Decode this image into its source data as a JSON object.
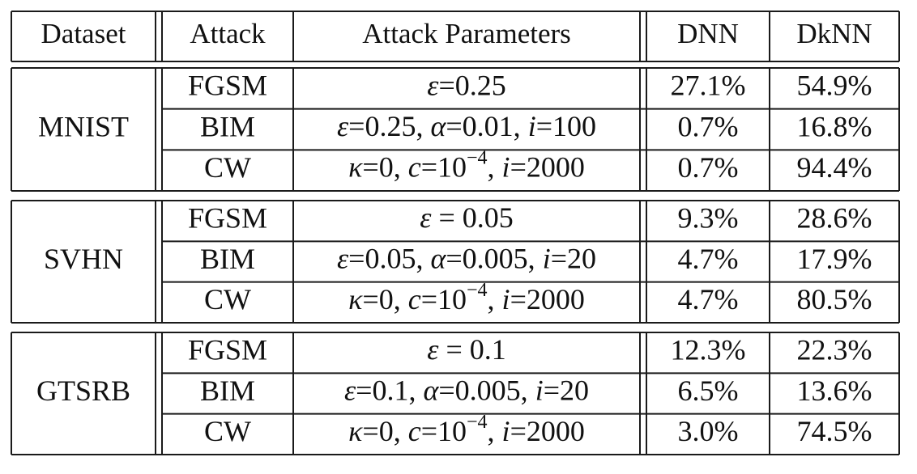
{
  "table": {
    "headers": [
      "Dataset",
      "Attack",
      "Attack Parameters",
      "DNN",
      "DkNN"
    ],
    "groups": [
      {
        "dataset": "MNIST",
        "rows": [
          {
            "attack": "FGSM",
            "params": [
              {
                "t": "ε",
                "i": true
              },
              {
                "t": "=0.25"
              }
            ],
            "dnn": "27.1%",
            "dknn": "54.9%"
          },
          {
            "attack": "BIM",
            "params": [
              {
                "t": "ε",
                "i": true
              },
              {
                "t": "=0.25, "
              },
              {
                "t": "α",
                "i": true
              },
              {
                "t": "=0.01, "
              },
              {
                "t": "i",
                "i": true
              },
              {
                "t": "=100"
              }
            ],
            "dnn": "0.7%",
            "dknn": "16.8%"
          },
          {
            "attack": "CW",
            "params": [
              {
                "t": "κ",
                "i": true
              },
              {
                "t": "=0, "
              },
              {
                "t": "c",
                "i": true
              },
              {
                "t": "=10"
              },
              {
                "t": "−4",
                "sup": true
              },
              {
                "t": ", "
              },
              {
                "t": "i",
                "i": true
              },
              {
                "t": "=2000"
              }
            ],
            "dnn": "0.7%",
            "dknn": "94.4%"
          }
        ]
      },
      {
        "dataset": "SVHN",
        "rows": [
          {
            "attack": "FGSM",
            "params": [
              {
                "t": "ε",
                "i": true
              },
              {
                "t": " = 0.05"
              }
            ],
            "dnn": "9.3%",
            "dknn": "28.6%"
          },
          {
            "attack": "BIM",
            "params": [
              {
                "t": "ε",
                "i": true
              },
              {
                "t": "=0.05, "
              },
              {
                "t": "α",
                "i": true
              },
              {
                "t": "=0.005, "
              },
              {
                "t": "i",
                "i": true
              },
              {
                "t": "=20"
              }
            ],
            "dnn": "4.7%",
            "dknn": "17.9%"
          },
          {
            "attack": "CW",
            "params": [
              {
                "t": "κ",
                "i": true
              },
              {
                "t": "=0, "
              },
              {
                "t": "c",
                "i": true
              },
              {
                "t": "=10"
              },
              {
                "t": "−4",
                "sup": true
              },
              {
                "t": ", "
              },
              {
                "t": "i",
                "i": true
              },
              {
                "t": "=2000"
              }
            ],
            "dnn": "4.7%",
            "dknn": "80.5%"
          }
        ]
      },
      {
        "dataset": "GTSRB",
        "rows": [
          {
            "attack": "FGSM",
            "params": [
              {
                "t": "ε",
                "i": true
              },
              {
                "t": " = 0.1"
              }
            ],
            "dnn": "12.3%",
            "dknn": "22.3%"
          },
          {
            "attack": "BIM",
            "params": [
              {
                "t": "ε",
                "i": true
              },
              {
                "t": "=0.1, "
              },
              {
                "t": "α",
                "i": true
              },
              {
                "t": "=0.005, "
              },
              {
                "t": "i",
                "i": true
              },
              {
                "t": "=20"
              }
            ],
            "dnn": "6.5%",
            "dknn": "13.6%"
          },
          {
            "attack": "CW",
            "params": [
              {
                "t": "κ",
                "i": true
              },
              {
                "t": "=0, "
              },
              {
                "t": "c",
                "i": true
              },
              {
                "t": "=10"
              },
              {
                "t": "−4",
                "sup": true
              },
              {
                "t": ", "
              },
              {
                "t": "i",
                "i": true
              },
              {
                "t": "=2000"
              }
            ],
            "dnn": "3.0%",
            "dknn": "74.5%"
          }
        ]
      }
    ]
  }
}
